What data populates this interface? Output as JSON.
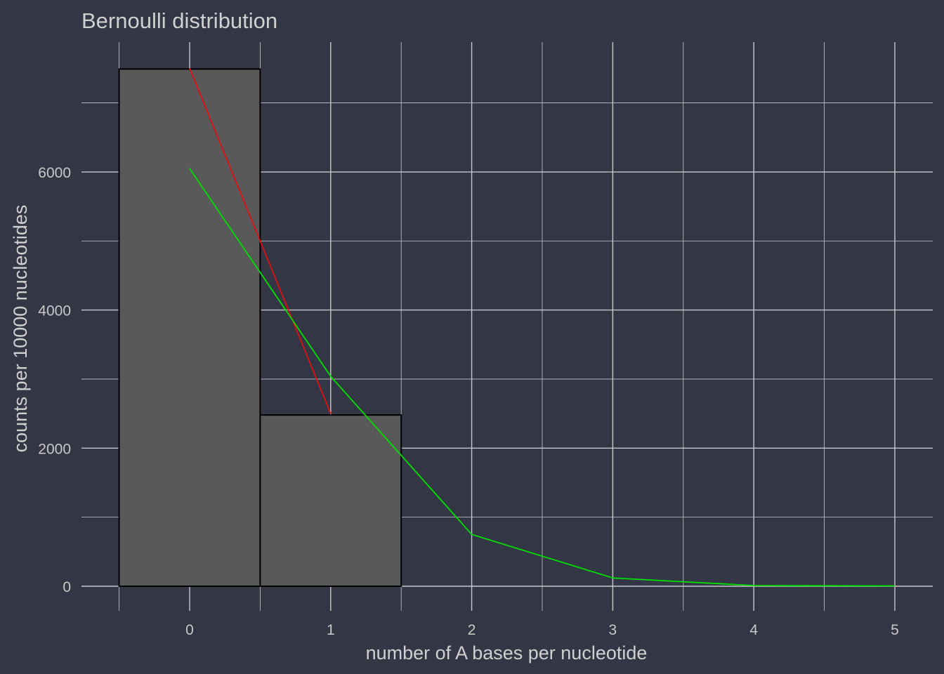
{
  "chart_data": {
    "type": "bar",
    "title": "Bernoulli distribution",
    "xlabel": "number of A bases per nucleotide",
    "ylabel": "counts per 10000 nucleotides",
    "xlim": [
      -0.5,
      5
    ],
    "ylim": [
      0,
      7500
    ],
    "x_ticks": [
      "0",
      "1",
      "2",
      "3",
      "4",
      "5"
    ],
    "y_ticks": [
      "0",
      "2000",
      "4000",
      "6000"
    ],
    "grid": true,
    "bars": [
      {
        "x": 0,
        "value": 7490
      },
      {
        "x": 1,
        "value": 2480
      }
    ],
    "series": [
      {
        "color": "#e01010",
        "x": [
          0,
          1
        ],
        "values": [
          7500,
          2500
        ]
      },
      {
        "color": "#00e000",
        "x": [
          0,
          1,
          2,
          3,
          4,
          5
        ],
        "values": [
          6050,
          3040,
          750,
          120,
          10,
          5
        ]
      }
    ],
    "colors": {
      "background": "#333645",
      "grid": "#c8c8cc",
      "bar_fill": "#595959",
      "bar_stroke": "#000000"
    }
  }
}
